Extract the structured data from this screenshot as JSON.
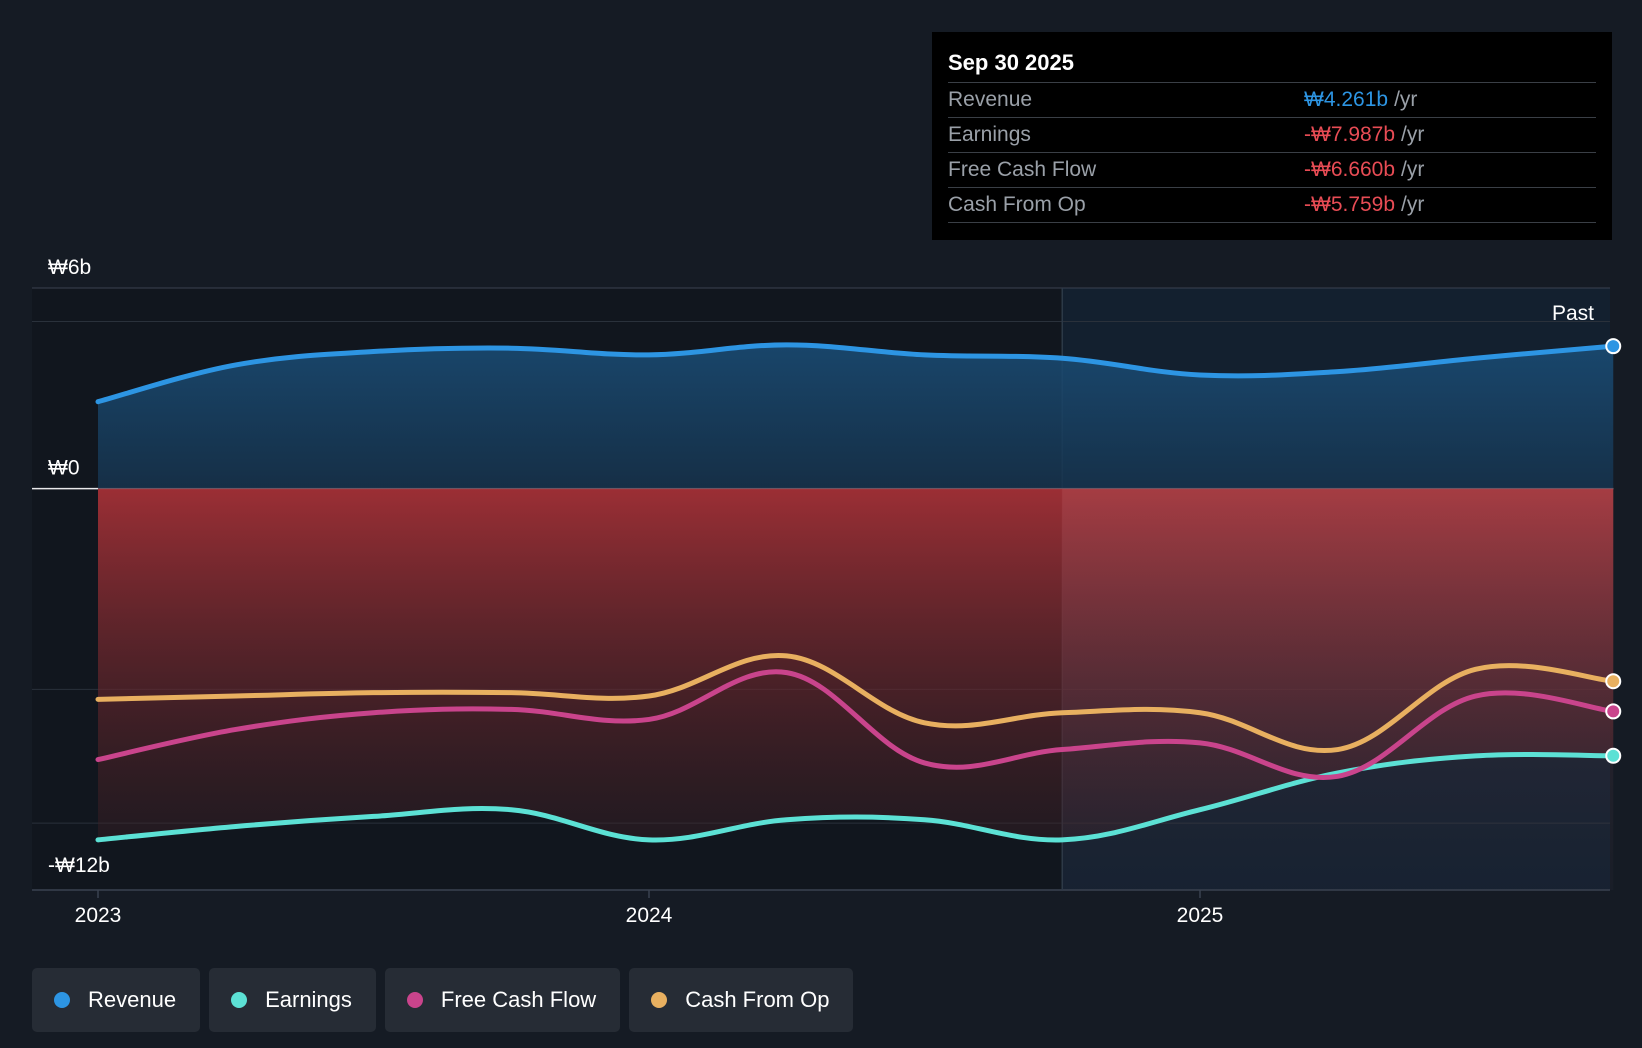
{
  "tooltip": {
    "date": "Sep 30 2025",
    "rows": [
      {
        "label": "Revenue",
        "value": "₩4.261b",
        "unit": "/yr",
        "color": "#2d95e3"
      },
      {
        "label": "Earnings",
        "value": "-₩7.987b",
        "unit": "/yr",
        "color": "#e84c55"
      },
      {
        "label": "Free Cash Flow",
        "value": "-₩6.660b",
        "unit": "/yr",
        "color": "#e84c55"
      },
      {
        "label": "Cash From Op",
        "value": "-₩5.759b",
        "unit": "/yr",
        "color": "#e84c55"
      }
    ]
  },
  "legend": [
    {
      "label": "Revenue",
      "color": "#2d95e3"
    },
    {
      "label": "Earnings",
      "color": "#5ce1d5"
    },
    {
      "label": "Free Cash Flow",
      "color": "#c9448c"
    },
    {
      "label": "Cash From Op",
      "color": "#e8b060"
    }
  ],
  "chart_data": {
    "type": "line",
    "title": "",
    "xlabel": "",
    "ylabel": "",
    "unit": "₩b",
    "ylim": [
      -12,
      6
    ],
    "y_tick_labels": [
      {
        "value": 6,
        "label": "₩6b"
      },
      {
        "value": 0,
        "label": "₩0"
      },
      {
        "value": -12,
        "label": "-₩12b"
      }
    ],
    "x_tick_labels": [
      {
        "value": 2023.0,
        "label": "2023"
      },
      {
        "value": 2024.0,
        "label": "2024"
      },
      {
        "value": 2025.0,
        "label": "2025"
      }
    ],
    "xlim": [
      2022.88,
      2025.75
    ],
    "past_start": 2024.75,
    "past_label": "Past",
    "series": [
      {
        "name": "Revenue",
        "color": "#2d95e3",
        "fill": true,
        "points": [
          [
            2023.0,
            2.6
          ],
          [
            2023.25,
            3.7
          ],
          [
            2023.5,
            4.1
          ],
          [
            2023.75,
            4.2
          ],
          [
            2024.0,
            4.0
          ],
          [
            2024.25,
            4.3
          ],
          [
            2024.5,
            4.0
          ],
          [
            2024.75,
            3.9
          ],
          [
            2025.0,
            3.4
          ],
          [
            2025.25,
            3.5
          ],
          [
            2025.5,
            3.9
          ],
          [
            2025.75,
            4.261
          ]
        ]
      },
      {
        "name": "Earnings",
        "color": "#5ce1d5",
        "points": [
          [
            2023.0,
            -10.5
          ],
          [
            2023.25,
            -10.1
          ],
          [
            2023.5,
            -9.8
          ],
          [
            2023.75,
            -9.6
          ],
          [
            2024.0,
            -10.5
          ],
          [
            2024.25,
            -9.9
          ],
          [
            2024.5,
            -9.9
          ],
          [
            2024.75,
            -10.5
          ],
          [
            2025.0,
            -9.6
          ],
          [
            2025.25,
            -8.5
          ],
          [
            2025.5,
            -7.99
          ],
          [
            2025.75,
            -7.987
          ]
        ]
      },
      {
        "name": "Free Cash Flow",
        "color": "#c9448c",
        "points": [
          [
            2023.0,
            -8.1
          ],
          [
            2023.25,
            -7.2
          ],
          [
            2023.5,
            -6.7
          ],
          [
            2023.75,
            -6.6
          ],
          [
            2024.0,
            -6.9
          ],
          [
            2024.25,
            -5.5
          ],
          [
            2024.5,
            -8.2
          ],
          [
            2024.75,
            -7.8
          ],
          [
            2025.0,
            -7.6
          ],
          [
            2025.25,
            -8.6
          ],
          [
            2025.5,
            -6.2
          ],
          [
            2025.75,
            -6.66
          ]
        ]
      },
      {
        "name": "Cash From Op",
        "color": "#e8b060",
        "points": [
          [
            2023.0,
            -6.3
          ],
          [
            2023.25,
            -6.2
          ],
          [
            2023.5,
            -6.1
          ],
          [
            2023.75,
            -6.1
          ],
          [
            2024.0,
            -6.2
          ],
          [
            2024.25,
            -5.0
          ],
          [
            2024.5,
            -7.0
          ],
          [
            2024.75,
            -6.7
          ],
          [
            2025.0,
            -6.7
          ],
          [
            2025.25,
            -7.8
          ],
          [
            2025.5,
            -5.4
          ],
          [
            2025.75,
            -5.759
          ]
        ]
      }
    ]
  }
}
